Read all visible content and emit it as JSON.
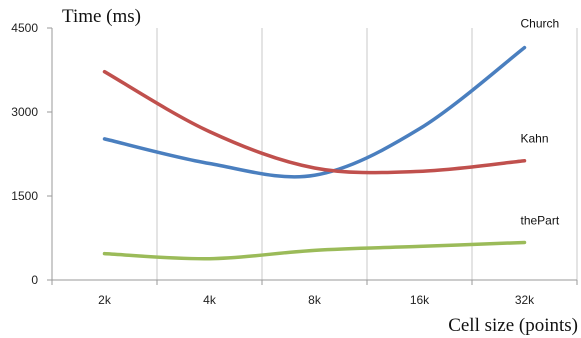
{
  "chart_data": {
    "type": "line",
    "ylabel": "Time (ms)",
    "xlabel": "Cell size (points)",
    "categories": [
      "2k",
      "4k",
      "8k",
      "16k",
      "32k"
    ],
    "ylim": [
      0,
      4500
    ],
    "yticks": [
      0,
      1500,
      3000,
      4500
    ],
    "grid": {
      "vertical": true,
      "horizontal": false
    },
    "series": [
      {
        "name": "Church",
        "color": "#4a7fbf",
        "values": [
          2520,
          2080,
          1870,
          2700,
          4150
        ]
      },
      {
        "name": "Kahn",
        "color": "#c0504d",
        "values": [
          3720,
          2650,
          2000,
          1940,
          2130
        ]
      },
      {
        "name": "thePart",
        "color": "#9bbb59",
        "values": [
          470,
          380,
          530,
          600,
          670
        ]
      }
    ]
  }
}
